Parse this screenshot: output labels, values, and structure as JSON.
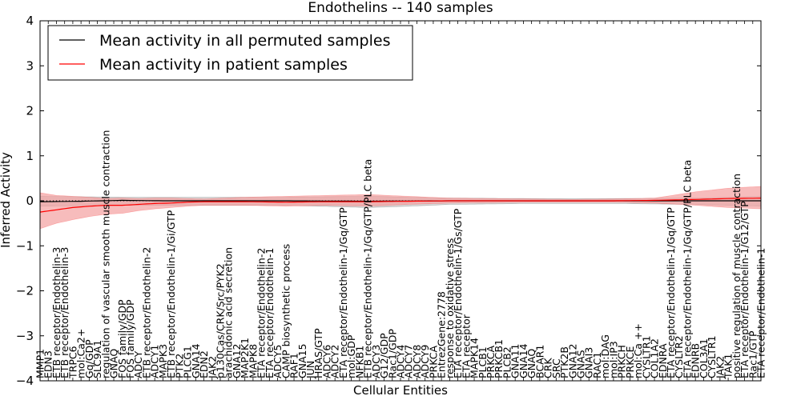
{
  "chart_data": {
    "type": "line",
    "title": "Endothelins -- 140 samples",
    "xlabel": "Cellular Entities",
    "ylabel": "Inferred Activity",
    "ylim": [
      -4,
      4
    ],
    "yticks": [
      -4,
      -3,
      -2,
      -1,
      0,
      1,
      2,
      3,
      4
    ],
    "grid": false,
    "legend_position": "top-left",
    "reference_line": {
      "y": 0,
      "style": "dotted"
    },
    "categories": [
      "MMP1",
      "EDN3",
      "ETB receptor/Endothelin-3",
      "ETB receptor/Endothelin-3",
      "TRPC6",
      "mol:Ca2+",
      "Gq/GDP",
      "SLC9A1",
      "regulation of vascular smooth muscle contraction",
      "GNAQ",
      "FOS family/GDP",
      "FOS family/GDP",
      "ADCY",
      "ETB receptor/Endothelin-2",
      "ADCY1",
      "MAPK3",
      "ETB receptor/Endothelin-1/Gi/GTP",
      "PTK2",
      "PLCG1",
      "GNA14",
      "EDN2",
      "JAK2",
      "p130Cas/CRK/Src/PYK2",
      "arachidonic acid secretion",
      "GNA12",
      "MAP2K1",
      "MAPK8",
      "ETA receptor/Endothelin-2",
      "ETA receptor/Endothelin-1",
      "ADCY5",
      "CAMP biosynthetic process",
      "RAF1",
      "GNA15",
      "JUN",
      "HRAS/GTP",
      "ADCY6",
      "ADCY2",
      "ETA receptor/Endothelin-1/Gq/GTP",
      "mol:GDP",
      "NFKB1",
      "ETB receptor/Endothelin-1/Gq/GTP/PLC beta",
      "ADCY3",
      "G12/GDP",
      "Rac1/GDP",
      "ADCY4",
      "ADCY7",
      "ADCY8",
      "ADCY9",
      "PRKCA",
      "EntrezGene:2778",
      "response to oxidative stress",
      "ETA receptor/Endothelin-1/Gs/GTP",
      "ETA receptor",
      "MAPK14",
      "PLCB1",
      "PRKCA",
      "PRKCB1",
      "PLCB2",
      "GNA11",
      "GNA14",
      "GNAQ",
      "BCAR1",
      "CRK",
      "SRC",
      "PTK2B",
      "GNA12",
      "GNAS",
      "GNAI3",
      "RAC1",
      "mol:DAG",
      "mol:IP3",
      "PRKCH",
      "PRKCE",
      "mol:Ca ++",
      "CYSLTR1",
      "COL1A2",
      "EDNRA",
      "ETA receptor/Endothelin-1/Gq/GTP",
      "CYSLTR2",
      "ETA receptor/Endothelin-1/Gq/GTP/PLC beta",
      "EDNRB",
      "COL3A1",
      "CYSLTR1",
      "JAK2",
      "TAK1",
      "positive regulation of muscle contraction",
      "ETA receptor/Endothelin-1/G12/GTP",
      "Rac1/GTP",
      "ETA receptor/Endothelin-1"
    ],
    "series": [
      {
        "name": "Mean activity in all permuted samples",
        "color": "#000000",
        "band_color": "#d0d0d0",
        "x_range": [
          0,
          88
        ],
        "points": [
          [
            0,
            -0.02
          ],
          [
            5,
            -0.01
          ],
          [
            10,
            0.01
          ],
          [
            15,
            0.0
          ],
          [
            20,
            0.0
          ],
          [
            30,
            0.0
          ],
          [
            40,
            -0.01
          ],
          [
            50,
            0.0
          ],
          [
            60,
            0.0
          ],
          [
            70,
            0.0
          ],
          [
            80,
            0.0
          ],
          [
            88,
            0.0
          ]
        ],
        "band_lower": [
          [
            0,
            -0.12
          ],
          [
            10,
            -0.1
          ],
          [
            20,
            -0.1
          ],
          [
            30,
            -0.1
          ],
          [
            40,
            -0.15
          ],
          [
            45,
            -0.12
          ],
          [
            50,
            -0.08
          ],
          [
            60,
            -0.06
          ],
          [
            70,
            -0.06
          ],
          [
            80,
            -0.08
          ],
          [
            88,
            -0.12
          ]
        ],
        "band_upper": [
          [
            0,
            0.1
          ],
          [
            10,
            0.08
          ],
          [
            20,
            0.08
          ],
          [
            30,
            0.08
          ],
          [
            40,
            0.1
          ],
          [
            50,
            0.06
          ],
          [
            60,
            0.05
          ],
          [
            70,
            0.05
          ],
          [
            80,
            0.06
          ],
          [
            88,
            0.1
          ]
        ]
      },
      {
        "name": "Mean activity in patient samples",
        "color": "#ff0000",
        "band_color": "#f4a0a0",
        "x_range": [
          0,
          88
        ],
        "points": [
          [
            0,
            -0.25
          ],
          [
            2,
            -0.2
          ],
          [
            4,
            -0.15
          ],
          [
            6,
            -0.12
          ],
          [
            8,
            -0.1
          ],
          [
            10,
            -0.1
          ],
          [
            12,
            -0.08
          ],
          [
            14,
            -0.06
          ],
          [
            16,
            -0.05
          ],
          [
            18,
            -0.03
          ],
          [
            20,
            -0.02
          ],
          [
            25,
            -0.02
          ],
          [
            30,
            -0.03
          ],
          [
            35,
            -0.02
          ],
          [
            40,
            -0.02
          ],
          [
            45,
            -0.01
          ],
          [
            50,
            0.0
          ],
          [
            55,
            0.0
          ],
          [
            60,
            0.0
          ],
          [
            65,
            0.0
          ],
          [
            70,
            0.0
          ],
          [
            75,
            0.01
          ],
          [
            80,
            0.03
          ],
          [
            84,
            0.05
          ],
          [
            88,
            0.06
          ]
        ],
        "band_lower": [
          [
            0,
            -0.62
          ],
          [
            2,
            -0.5
          ],
          [
            4,
            -0.42
          ],
          [
            6,
            -0.35
          ],
          [
            8,
            -0.3
          ],
          [
            10,
            -0.28
          ],
          [
            12,
            -0.22
          ],
          [
            14,
            -0.18
          ],
          [
            16,
            -0.15
          ],
          [
            18,
            -0.12
          ],
          [
            20,
            -0.1
          ],
          [
            25,
            -0.1
          ],
          [
            30,
            -0.12
          ],
          [
            35,
            -0.1
          ],
          [
            40,
            -0.12
          ],
          [
            45,
            -0.08
          ],
          [
            50,
            -0.05
          ],
          [
            55,
            -0.04
          ],
          [
            60,
            -0.03
          ],
          [
            65,
            -0.03
          ],
          [
            70,
            -0.03
          ],
          [
            75,
            -0.05
          ],
          [
            80,
            -0.1
          ],
          [
            84,
            -0.15
          ],
          [
            88,
            -0.18
          ]
        ],
        "band_upper": [
          [
            0,
            0.18
          ],
          [
            2,
            0.12
          ],
          [
            4,
            0.1
          ],
          [
            6,
            0.08
          ],
          [
            8,
            0.05
          ],
          [
            10,
            0.06
          ],
          [
            12,
            0.05
          ],
          [
            14,
            0.06
          ],
          [
            16,
            0.06
          ],
          [
            18,
            0.05
          ],
          [
            20,
            0.04
          ],
          [
            25,
            0.08
          ],
          [
            30,
            0.1
          ],
          [
            35,
            0.12
          ],
          [
            40,
            0.14
          ],
          [
            45,
            0.1
          ],
          [
            50,
            0.06
          ],
          [
            55,
            0.05
          ],
          [
            60,
            0.04
          ],
          [
            65,
            0.03
          ],
          [
            70,
            0.04
          ],
          [
            75,
            0.06
          ],
          [
            80,
            0.2
          ],
          [
            84,
            0.28
          ],
          [
            88,
            0.32
          ]
        ]
      }
    ]
  }
}
